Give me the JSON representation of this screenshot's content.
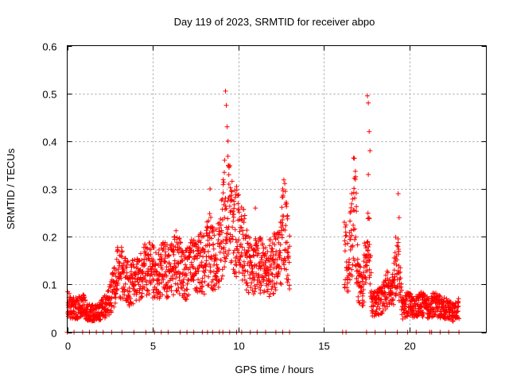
{
  "chart_data": {
    "type": "scatter",
    "title": "Day 119 of 2023, SRMTID for receiver abpo",
    "xlabel": "GPS time / hours",
    "ylabel": "SRMTID / TECUs",
    "xlim": [
      0,
      24.5
    ],
    "ylim": [
      0,
      0.6
    ],
    "xticks": [
      0,
      5,
      10,
      15,
      20
    ],
    "xtick_labels": [
      "0",
      "5",
      "10",
      "15",
      "20"
    ],
    "yticks": [
      0,
      0.1,
      0.2,
      0.3,
      0.4,
      0.5,
      0.6
    ],
    "ytick_labels": [
      "0",
      "0.1",
      "0.2",
      "0.3",
      "0.4",
      "0.5",
      "0.6"
    ],
    "grid": true,
    "marker": "+",
    "color": "#ff0000",
    "series": [
      {
        "name": "SRMTID",
        "segments_note": "dense scatter approximated by trend points (hour, SRMTID)",
        "trend": [
          [
            0.0,
            0.06
          ],
          [
            0.3,
            0.05
          ],
          [
            0.6,
            0.05
          ],
          [
            0.9,
            0.06
          ],
          [
            1.2,
            0.04
          ],
          [
            1.5,
            0.04
          ],
          [
            1.8,
            0.04
          ],
          [
            2.1,
            0.05
          ],
          [
            2.4,
            0.06
          ],
          [
            2.7,
            0.09
          ],
          [
            3.0,
            0.13
          ],
          [
            3.3,
            0.12
          ],
          [
            3.6,
            0.1
          ],
          [
            4.0,
            0.11
          ],
          [
            4.4,
            0.12
          ],
          [
            4.8,
            0.14
          ],
          [
            5.2,
            0.12
          ],
          [
            5.6,
            0.13
          ],
          [
            6.0,
            0.13
          ],
          [
            6.4,
            0.15
          ],
          [
            6.8,
            0.12
          ],
          [
            7.2,
            0.13
          ],
          [
            7.6,
            0.15
          ],
          [
            8.0,
            0.14
          ],
          [
            8.3,
            0.18
          ],
          [
            8.6,
            0.14
          ],
          [
            8.9,
            0.17
          ],
          [
            9.2,
            0.24
          ],
          [
            9.4,
            0.28
          ],
          [
            9.6,
            0.22
          ],
          [
            9.9,
            0.21
          ],
          [
            10.2,
            0.2
          ],
          [
            10.5,
            0.15
          ],
          [
            10.8,
            0.13
          ],
          [
            11.2,
            0.14
          ],
          [
            11.6,
            0.13
          ],
          [
            12.0,
            0.14
          ],
          [
            12.4,
            0.15
          ],
          [
            12.7,
            0.24
          ],
          [
            13.0,
            0.14
          ],
          [
            16.2,
            0.16
          ],
          [
            16.5,
            0.15
          ],
          [
            16.8,
            0.28
          ],
          [
            17.0,
            0.1
          ],
          [
            17.3,
            0.09
          ],
          [
            17.6,
            0.22
          ],
          [
            17.8,
            0.06
          ],
          [
            18.1,
            0.06
          ],
          [
            18.4,
            0.07
          ],
          [
            18.7,
            0.09
          ],
          [
            19.0,
            0.08
          ],
          [
            19.3,
            0.16
          ],
          [
            19.6,
            0.05
          ],
          [
            19.9,
            0.06
          ],
          [
            20.3,
            0.05
          ],
          [
            20.7,
            0.06
          ],
          [
            21.1,
            0.05
          ],
          [
            21.5,
            0.06
          ],
          [
            21.9,
            0.05
          ],
          [
            22.3,
            0.05
          ],
          [
            22.6,
            0.04
          ],
          [
            22.9,
            0.05
          ]
        ],
        "spikes": [
          [
            9.25,
            0.505
          ],
          [
            9.3,
            0.475
          ],
          [
            9.35,
            0.43
          ],
          [
            9.4,
            0.4
          ],
          [
            9.2,
            0.36
          ],
          [
            9.45,
            0.31
          ],
          [
            17.55,
            0.495
          ],
          [
            17.6,
            0.48
          ],
          [
            17.65,
            0.42
          ],
          [
            17.7,
            0.38
          ],
          [
            17.6,
            0.33
          ],
          [
            16.85,
            0.32
          ],
          [
            19.35,
            0.29
          ],
          [
            19.4,
            0.24
          ],
          [
            8.35,
            0.3
          ],
          [
            12.6,
            0.3
          ],
          [
            11.0,
            0.26
          ],
          [
            13.0,
            0.18
          ]
        ],
        "zero_points": [
          0.0,
          0.4,
          0.9,
          1.3,
          1.7,
          2.1,
          2.6,
          3.2,
          3.9,
          4.6,
          5.1,
          5.5,
          5.9,
          6.6,
          7.0,
          7.4,
          7.9,
          8.2,
          8.5,
          8.9,
          9.1,
          9.5,
          9.9,
          10.2,
          10.7,
          11.1,
          11.6,
          12.2,
          12.6,
          13.0,
          16.1,
          16.3,
          17.5,
          18.0,
          18.6,
          19.3,
          19.9,
          20.4,
          21.2,
          21.3,
          21.8,
          22.3,
          22.9
        ]
      }
    ]
  }
}
